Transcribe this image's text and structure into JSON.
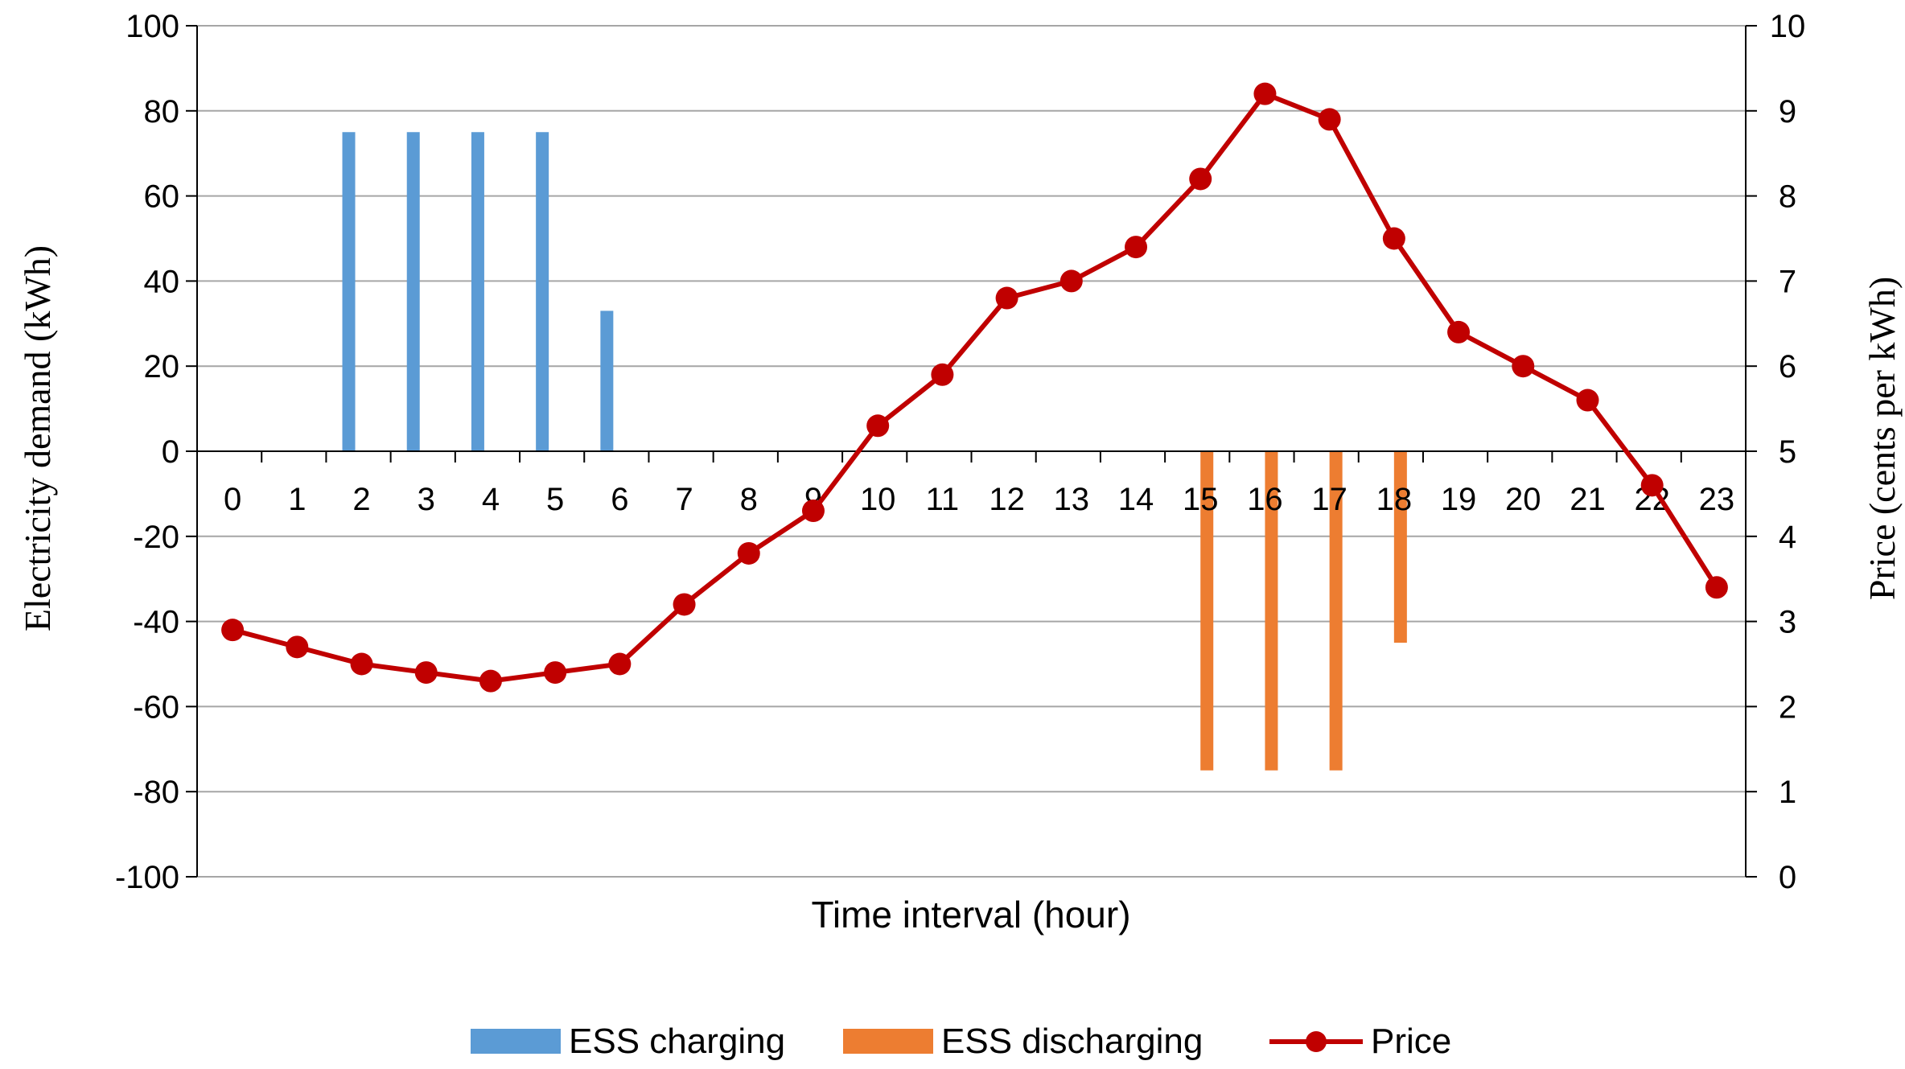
{
  "chart_data": {
    "type": "bar",
    "title": "",
    "xlabel": "Time interval (hour)",
    "ylabel": "Electricity demand (kWh)",
    "y2label": "Price (cents per kWh)",
    "categories": [
      "0",
      "1",
      "2",
      "3",
      "4",
      "5",
      "6",
      "7",
      "8",
      "9",
      "10",
      "11",
      "12",
      "13",
      "14",
      "15",
      "16",
      "17",
      "18",
      "19",
      "20",
      "21",
      "22",
      "23"
    ],
    "ylim": [
      -100,
      100
    ],
    "yticks": [
      "100",
      "80",
      "60",
      "40",
      "20",
      "0",
      "-20",
      "-40",
      "-60",
      "-80",
      "-100"
    ],
    "y2lim": [
      0,
      10
    ],
    "y2ticks": [
      "10",
      "9",
      "8",
      "7",
      "6",
      "5",
      "4",
      "3",
      "2",
      "1",
      "0"
    ],
    "grid": true,
    "legend_position": "bottom",
    "series": [
      {
        "name": "ESS charging",
        "type": "bar",
        "color": "#5B9BD5",
        "values": [
          0,
          0,
          75,
          75,
          75,
          75,
          33,
          0,
          0,
          0,
          0,
          0,
          0,
          0,
          0,
          0,
          0,
          0,
          0,
          0,
          0,
          0,
          0,
          0
        ]
      },
      {
        "name": "ESS discharging",
        "type": "bar",
        "color": "#ED7D31",
        "values": [
          0,
          0,
          0,
          0,
          0,
          0,
          0,
          0,
          0,
          0,
          0,
          0,
          0,
          0,
          0,
          -75,
          -75,
          -75,
          -45,
          0,
          0,
          0,
          0,
          0
        ]
      },
      {
        "name": "Price",
        "type": "line",
        "axis": "right",
        "color": "#C00000",
        "values": [
          2.9,
          2.7,
          2.5,
          2.4,
          2.3,
          2.4,
          2.5,
          3.2,
          3.8,
          4.3,
          5.3,
          5.9,
          6.8,
          7.0,
          7.4,
          8.2,
          9.2,
          8.9,
          7.5,
          6.4,
          6.0,
          5.6,
          4.6,
          3.4
        ]
      }
    ]
  }
}
